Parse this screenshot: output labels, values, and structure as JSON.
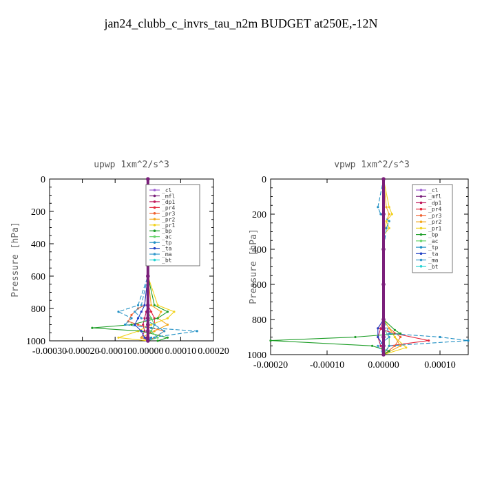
{
  "figure": {
    "title": "jan24_clubb_c_invrs_tau_n2m  BUDGET at250E,-12N"
  },
  "legend_entries": [
    {
      "name": "_cl",
      "color": "#9b59d0"
    },
    {
      "name": "_mfl",
      "color": "#7a1f7a"
    },
    {
      "name": "_dp1",
      "color": "#c0185b"
    },
    {
      "name": "_pr4",
      "color": "#e3263b"
    },
    {
      "name": "_pr3",
      "color": "#f0602f"
    },
    {
      "name": "_pr2",
      "color": "#f4a81c"
    },
    {
      "name": "_pr1",
      "color": "#f2d21e"
    },
    {
      "name": "_bp",
      "color": "#1e9e28"
    },
    {
      "name": "_ac",
      "color": "#66d46a"
    },
    {
      "name": "_tp",
      "color": "#1f8fc4"
    },
    {
      "name": "_ta",
      "color": "#1f3fc4"
    },
    {
      "name": "_ma",
      "color": "#3399cc"
    },
    {
      "name": "_bt",
      "color": "#22d3d3"
    }
  ],
  "chart_data": [
    {
      "type": "line",
      "title": "upwp  1xm^2/s^3",
      "ylabel": "Pressure [hPa]",
      "xlabel": "",
      "xlim": [
        -0.0003,
        0.0002
      ],
      "ylim": [
        1000,
        0
      ],
      "xticks": [
        -0.0003,
        -0.0002,
        -0.0001,
        0.0,
        0.0001,
        0.0002
      ],
      "xtick_labels": [
        "-0.00030",
        "-0.00020",
        "-0.00010",
        "0.00000",
        "0.00010",
        "0.00020"
      ],
      "yticks": [
        0,
        200,
        400,
        600,
        800,
        1000
      ],
      "ytick_labels": [
        "0",
        "200",
        "400",
        "600",
        "800",
        "1000"
      ],
      "grid": false,
      "legend_position": "top-right",
      "series": [
        {
          "name": "_cl",
          "y": [
            0,
            200,
            400,
            600,
            780,
            820,
            860,
            900,
            940,
            980,
            1000
          ],
          "x": [
            0,
            0,
            0,
            0,
            0,
            0,
            0,
            0,
            0,
            0,
            0
          ]
        },
        {
          "name": "_mfl",
          "y": [
            0,
            200,
            400,
            600,
            780,
            820,
            860,
            900,
            940,
            980,
            1000
          ],
          "x": [
            0,
            0,
            0,
            0,
            0,
            0,
            0,
            0,
            0,
            0,
            0
          ]
        },
        {
          "name": "_dp1",
          "y": [
            0,
            200,
            400,
            600,
            780,
            820,
            860,
            900,
            940,
            980,
            1000
          ],
          "x": [
            0,
            0,
            0,
            0,
            0,
            -5e-06,
            -1e-05,
            -1.5e-05,
            -1e-05,
            -2e-05,
            0
          ]
        },
        {
          "name": "_pr4",
          "y": [
            0,
            200,
            400,
            600,
            780,
            820,
            860,
            900,
            940,
            980,
            1000
          ],
          "x": [
            0,
            0,
            0,
            0,
            0,
            1e-05,
            2e-05,
            2e-05,
            1e-05,
            -5e-06,
            0
          ]
        },
        {
          "name": "_pr3",
          "y": [
            0,
            200,
            400,
            600,
            780,
            800,
            840,
            880,
            900,
            940,
            980,
            1000
          ],
          "x": [
            0,
            0,
            0,
            0,
            -1e-05,
            -3e-05,
            -5e-05,
            -6e-05,
            -3e-05,
            5e-05,
            2e-05,
            0
          ]
        },
        {
          "name": "_pr2",
          "y": [
            0,
            200,
            400,
            600,
            780,
            820,
            860,
            900,
            940,
            980,
            1000
          ],
          "x": [
            0,
            0,
            0,
            0,
            1e-05,
            4e-05,
            3e-05,
            6e-05,
            2e-05,
            -2e-05,
            0
          ]
        },
        {
          "name": "_pr1",
          "y": [
            0,
            200,
            400,
            600,
            780,
            820,
            860,
            900,
            940,
            980,
            1000
          ],
          "x": [
            0,
            0,
            0,
            0,
            3e-05,
            8e-05,
            6e-05,
            1e-05,
            -3e-05,
            -9e-05,
            0
          ]
        },
        {
          "name": "_bp",
          "y": [
            0,
            200,
            400,
            600,
            780,
            820,
            860,
            900,
            920,
            940,
            980,
            1000
          ],
          "x": [
            0,
            0,
            0,
            0,
            2e-05,
            6e-05,
            3e-05,
            -5e-05,
            -0.00017,
            -2e-05,
            6e-05,
            3e-05
          ]
        },
        {
          "name": "_ac",
          "y": [
            0,
            200,
            400,
            600,
            780,
            820,
            860,
            900,
            940,
            980,
            1000
          ],
          "x": [
            0,
            0,
            0,
            0,
            0,
            0,
            1e-05,
            2e-05,
            1e-05,
            3e-05,
            0
          ]
        },
        {
          "name": "_tp",
          "y": [
            0,
            200,
            400,
            600,
            780,
            820,
            860,
            900,
            920,
            940,
            980,
            1000
          ],
          "x": [
            0,
            0,
            0,
            0,
            -3e-05,
            -9e-05,
            -5e-05,
            -7e-05,
            1e-05,
            0.00015,
            1e-05,
            0
          ]
        },
        {
          "name": "_ta",
          "y": [
            0,
            200,
            400,
            600,
            780,
            820,
            860,
            900,
            940,
            980,
            1000
          ],
          "x": [
            0,
            0,
            0,
            0,
            -1e-05,
            -2e-05,
            -3e-05,
            -4e-05,
            -2e-05,
            -1e-05,
            0
          ]
        },
        {
          "name": "_ma",
          "y": [
            0,
            200,
            400,
            600,
            780,
            820,
            860,
            900,
            940,
            980,
            1000
          ],
          "x": [
            0,
            0,
            0,
            0,
            -2e-05,
            -4e-05,
            -2e-05,
            2e-05,
            5e-05,
            2e-05,
            0
          ]
        },
        {
          "name": "_bt",
          "y": [
            0,
            200,
            400,
            600,
            780,
            820,
            860,
            900,
            940,
            980,
            1000
          ],
          "x": [
            0,
            0,
            0,
            0,
            0,
            0,
            0,
            0,
            0,
            0,
            0
          ]
        }
      ]
    },
    {
      "type": "line",
      "title": "vpwp  1xm^2/s^3",
      "ylabel": "Pressure [hPa]",
      "xlabel": "",
      "xlim": [
        -0.0002,
        0.00015
      ],
      "ylim": [
        1000,
        0
      ],
      "xticks": [
        -0.0002,
        -0.0001,
        0.0,
        0.0001
      ],
      "xtick_labels": [
        "-0.00020",
        "-0.00010",
        "0.00000",
        "0.00010"
      ],
      "yticks": [
        0,
        200,
        400,
        600,
        800,
        1000
      ],
      "ytick_labels": [
        "0",
        "200",
        "400",
        "600",
        "800",
        "1000"
      ],
      "grid": false,
      "legend_position": "top-right",
      "series": [
        {
          "name": "_cl",
          "y": [
            0,
            200,
            400,
            600,
            800,
            850,
            900,
            950,
            1000
          ],
          "x": [
            0,
            0,
            0,
            0,
            0,
            0,
            0,
            0,
            0
          ]
        },
        {
          "name": "_mfl",
          "y": [
            0,
            200,
            400,
            600,
            800,
            850,
            900,
            950,
            1000
          ],
          "x": [
            0,
            0,
            0,
            0,
            0,
            0,
            0,
            0,
            0
          ]
        },
        {
          "name": "_dp1",
          "y": [
            0,
            200,
            400,
            600,
            800,
            850,
            900,
            950,
            1000
          ],
          "x": [
            0,
            0,
            0,
            0,
            0,
            -5e-06,
            -1e-05,
            -5e-06,
            0
          ]
        },
        {
          "name": "_pr4",
          "y": [
            0,
            200,
            400,
            600,
            800,
            850,
            880,
            920,
            950,
            1000
          ],
          "x": [
            0,
            0,
            0,
            0,
            0,
            -1e-05,
            2e-05,
            8e-05,
            1e-05,
            0
          ]
        },
        {
          "name": "_pr3",
          "y": [
            0,
            200,
            400,
            600,
            800,
            850,
            900,
            950,
            1000
          ],
          "x": [
            0,
            0,
            0,
            0,
            0,
            1e-05,
            3e-05,
            2e-05,
            0
          ]
        },
        {
          "name": "_pr2",
          "y": [
            0,
            160,
            200,
            240,
            280,
            300,
            400,
            600,
            800,
            900,
            950,
            1000
          ],
          "x": [
            0,
            5e-06,
            1e-05,
            5e-06,
            3e-06,
            0,
            0,
            0,
            0,
            2e-05,
            3e-05,
            0
          ]
        },
        {
          "name": "_pr1",
          "y": [
            0,
            160,
            200,
            240,
            280,
            320,
            400,
            600,
            800,
            900,
            960,
            1000
          ],
          "x": [
            0,
            1e-05,
            1.5e-05,
            5e-06,
            1e-05,
            0,
            0,
            0,
            0,
            2e-05,
            4e-05,
            0
          ]
        },
        {
          "name": "_bp",
          "y": [
            0,
            200,
            400,
            600,
            800,
            860,
            880,
            900,
            920,
            950,
            980,
            1000
          ],
          "x": [
            0,
            0,
            0,
            0,
            0,
            2e-05,
            3e-05,
            -5e-05,
            -0.0002,
            -2e-05,
            1e-05,
            0
          ]
        },
        {
          "name": "_ac",
          "y": [
            0,
            200,
            400,
            600,
            800,
            850,
            900,
            950,
            1000
          ],
          "x": [
            0,
            0,
            0,
            0,
            0,
            0,
            1e-05,
            1e-05,
            0
          ]
        },
        {
          "name": "_tp",
          "y": [
            0,
            160,
            200,
            240,
            280,
            400,
            600,
            800,
            880,
            900,
            920,
            950,
            1000
          ],
          "x": [
            0,
            -1e-05,
            -5e-06,
            1e-05,
            5e-06,
            0,
            0,
            0,
            1e-05,
            0.0001,
            0.00015,
            1e-05,
            0
          ]
        },
        {
          "name": "_ta",
          "y": [
            0,
            200,
            400,
            600,
            800,
            850,
            900,
            950,
            1000
          ],
          "x": [
            0,
            0,
            0,
            0,
            0,
            -1e-05,
            -1e-05,
            0,
            0
          ]
        },
        {
          "name": "_ma",
          "y": [
            0,
            200,
            400,
            600,
            800,
            850,
            900,
            950,
            1000
          ],
          "x": [
            0,
            0,
            0,
            0,
            0,
            0,
            1e-05,
            -1e-05,
            0
          ]
        },
        {
          "name": "_bt",
          "y": [
            0,
            200,
            400,
            600,
            800,
            850,
            900,
            950,
            1000
          ],
          "x": [
            0,
            0,
            0,
            0,
            0,
            0,
            0,
            0,
            0
          ]
        }
      ]
    }
  ]
}
